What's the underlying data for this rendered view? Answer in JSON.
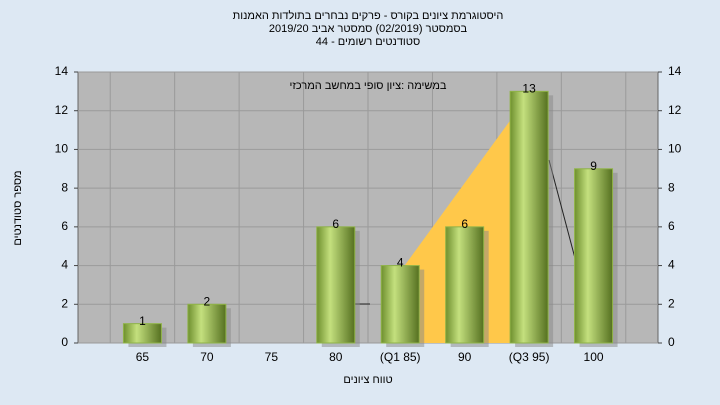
{
  "chart_data": {
    "type": "bar",
    "title": "היסטוגרמת ציונים בקורס - פרקים נבחרים בתולדות האמנות",
    "subtitle": "בסמסטר  (02/2019)  סמסטר אביב 2019/20",
    "subtitle2": "סטודנטים רשומים - 44",
    "annotation": "במשימה :ציון סופי במחשב המרכזי",
    "y_label": "מספר סטודנטים",
    "x_label": "טווח ציונים",
    "categories": [
      "65",
      "70",
      "75",
      "80",
      "(Q1 85)",
      "90",
      "(Q3 95)",
      "100"
    ],
    "values": [
      1,
      2,
      null,
      6,
      4,
      6,
      13,
      9
    ],
    "color": "#8fb347",
    "ylim": [
      0,
      14
    ],
    "yticks": [
      0,
      2,
      4,
      6,
      8,
      10,
      12,
      14
    ],
    "y2lim": [
      0,
      14
    ],
    "y2ticks": [
      0,
      2,
      4,
      6,
      8,
      10,
      12,
      14
    ],
    "grid": true
  }
}
